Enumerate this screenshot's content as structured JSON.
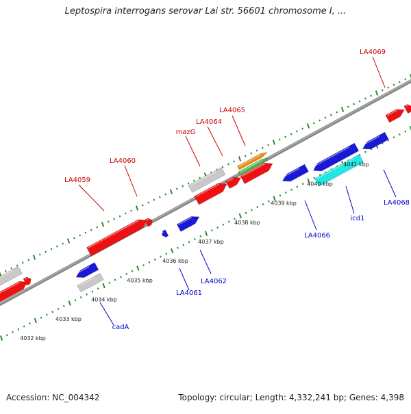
{
  "title": "Leptospira interrogans serovar Lai str. 56601 chromosome I, ...",
  "footer": {
    "accession": "Accession: NC_004342",
    "summary": "Topology: circular; Length: 4,332,241 bp; Genes: 4,398"
  },
  "colors": {
    "backbone": "#8a8a8a",
    "tick": "#2e8b2e",
    "forward_gene": "#ee1111",
    "reverse_gene": "#1a1ad6",
    "grey_gene": "#c8c8c8",
    "cyan_gene": "#22e5e5",
    "orange_gene": "#f08a10",
    "green_gene": "#44c044",
    "forward_label": "#cc0000",
    "reverse_label": "#0000cc"
  },
  "scale_labels": [
    {
      "text": "4032 kbp",
      "kbp": 4032
    },
    {
      "text": "4033 kbp",
      "kbp": 4033
    },
    {
      "text": "4034 kbp",
      "kbp": 4034
    },
    {
      "text": "4035 kbp",
      "kbp": 4035
    },
    {
      "text": "4036 kbp",
      "kbp": 4036
    },
    {
      "text": "4037 kbp",
      "kbp": 4037
    },
    {
      "text": "4038 kbp",
      "kbp": 4038
    },
    {
      "text": "4039 kbp",
      "kbp": 4039
    },
    {
      "text": "4040 kbp",
      "kbp": 4040
    },
    {
      "text": "4041 kbp",
      "kbp": 4041
    }
  ],
  "gene_labels": [
    {
      "text": "LA4059",
      "strand": "forward"
    },
    {
      "text": "LA4060",
      "strand": "forward"
    },
    {
      "text": "mazG",
      "strand": "forward"
    },
    {
      "text": "LA4064",
      "strand": "forward"
    },
    {
      "text": "LA4065",
      "strand": "forward"
    },
    {
      "text": "LA4069",
      "strand": "forward"
    },
    {
      "text": "cadA",
      "strand": "reverse"
    },
    {
      "text": "LA4061",
      "strand": "reverse"
    },
    {
      "text": "LA4062",
      "strand": "reverse"
    },
    {
      "text": "LA4066",
      "strand": "reverse"
    },
    {
      "text": "icd1",
      "strand": "reverse"
    },
    {
      "text": "LA4068",
      "strand": "reverse"
    }
  ]
}
